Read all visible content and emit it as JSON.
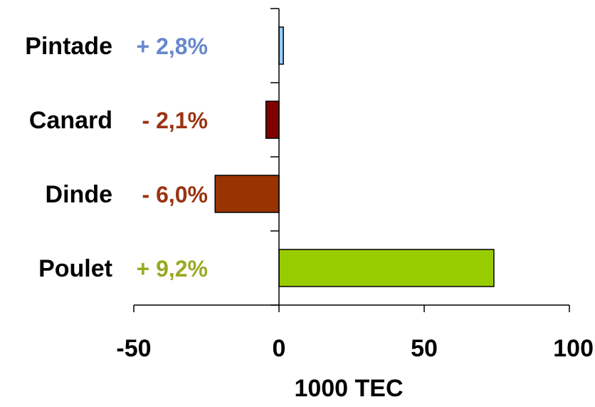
{
  "chart_data": {
    "type": "bar",
    "orientation": "horizontal",
    "categories": [
      "Pintade",
      "Canard",
      "Dinde",
      "Poulet"
    ],
    "values": [
      1.5,
      -4.5,
      -22,
      74
    ],
    "annotations": [
      "+ 2,8%",
      "- 2,1%",
      "- 6,0%",
      "+ 9,2%"
    ],
    "colors": [
      "#99ccff",
      "#800000",
      "#993300",
      "#99cc00"
    ],
    "annotation_colors": [
      "#6688cc",
      "#993311",
      "#993311",
      "#99aa22"
    ],
    "xlabel": "1000 TEC",
    "xlim": [
      -50,
      100
    ],
    "xticks": [
      -50,
      0,
      50,
      100
    ],
    "xtick_labels": [
      "-50",
      "0",
      "50",
      "100"
    ],
    "grid": false,
    "legend": "none"
  }
}
